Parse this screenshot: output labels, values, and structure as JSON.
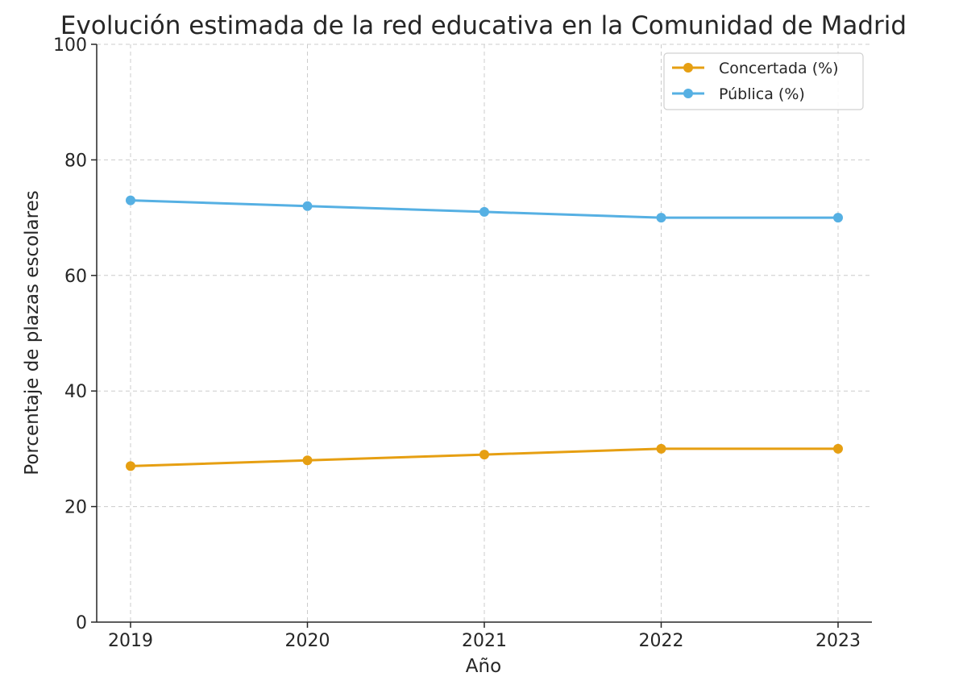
{
  "chart_data": {
    "type": "line",
    "title": "Evolución estimada de la red educativa en la Comunidad de Madrid",
    "xlabel": "Año",
    "ylabel": "Porcentaje de plazas escolares",
    "x": [
      "2019",
      "2020",
      "2021",
      "2022",
      "2023"
    ],
    "ylim": [
      0,
      100
    ],
    "yticks": [
      "0",
      "20",
      "40",
      "60",
      "80",
      "100"
    ],
    "grid": true,
    "legend_position": "top-right",
    "series": [
      {
        "name": "Concertada (%)",
        "color": "#E69F12",
        "marker": "circle",
        "values": [
          27,
          28,
          29,
          30,
          30
        ]
      },
      {
        "name": "Pública (%)",
        "color": "#56B0E3",
        "marker": "circle",
        "values": [
          73,
          72,
          71,
          70,
          70
        ]
      }
    ]
  }
}
